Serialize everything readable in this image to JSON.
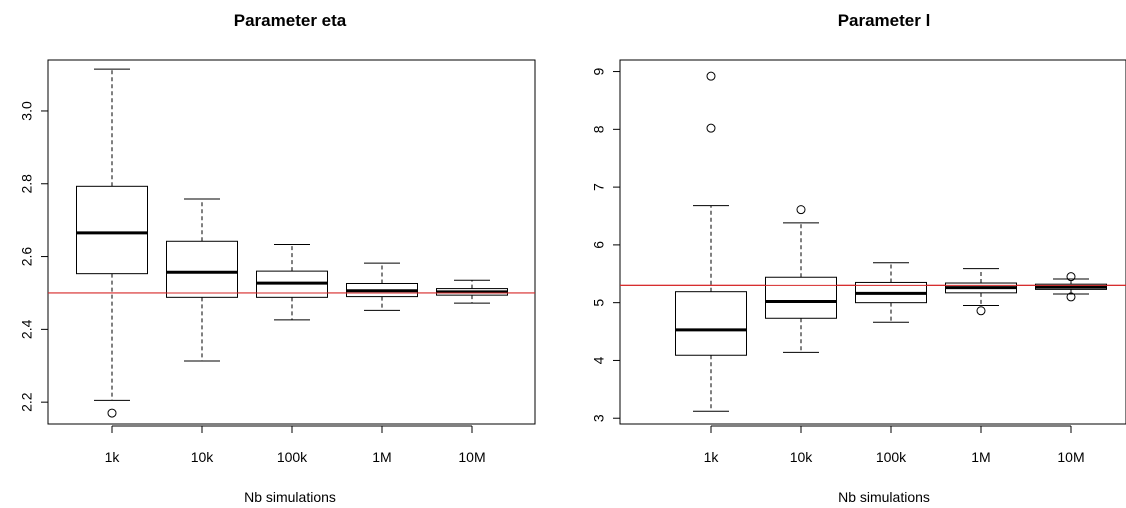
{
  "chart_data": [
    {
      "type": "boxplot",
      "title": "Parameter eta",
      "xlabel": "Nb simulations",
      "ylabel": "",
      "categories": [
        "1k",
        "10k",
        "100k",
        "1M",
        "10M"
      ],
      "yticks": [
        "2.2",
        "2.4",
        "2.6",
        "2.8",
        "3.0"
      ],
      "ylim": [
        2.14,
        3.14
      ],
      "reference_line": 2.5,
      "reference_color": "#d62728",
      "boxes": [
        {
          "whisker_low": 2.205,
          "q1": 2.553,
          "median": 2.665,
          "q3": 2.793,
          "whisker_high": 3.115,
          "outliers": [
            2.17
          ]
        },
        {
          "whisker_low": 2.313,
          "q1": 2.488,
          "median": 2.557,
          "q3": 2.642,
          "whisker_high": 2.758,
          "outliers": []
        },
        {
          "whisker_low": 2.426,
          "q1": 2.488,
          "median": 2.527,
          "q3": 2.56,
          "whisker_high": 2.633,
          "outliers": []
        },
        {
          "whisker_low": 2.452,
          "q1": 2.49,
          "median": 2.506,
          "q3": 2.526,
          "whisker_high": 2.582,
          "outliers": []
        },
        {
          "whisker_low": 2.472,
          "q1": 2.494,
          "median": 2.503,
          "q3": 2.512,
          "whisker_high": 2.535,
          "outliers": []
        }
      ]
    },
    {
      "type": "boxplot",
      "title": "Parameter l",
      "xlabel": "Nb simulations",
      "ylabel": "",
      "categories": [
        "1k",
        "10k",
        "100k",
        "1M",
        "10M"
      ],
      "yticks": [
        "3",
        "4",
        "5",
        "6",
        "7",
        "8",
        "9"
      ],
      "ylim": [
        2.9,
        9.2
      ],
      "reference_line": 5.3,
      "reference_color": "#d62728",
      "boxes": [
        {
          "whisker_low": 3.12,
          "q1": 4.09,
          "median": 4.53,
          "q3": 5.19,
          "whisker_high": 6.68,
          "outliers": [
            8.02,
            8.92
          ]
        },
        {
          "whisker_low": 4.14,
          "q1": 4.73,
          "median": 5.02,
          "q3": 5.44,
          "whisker_high": 6.38,
          "outliers": [
            6.61
          ]
        },
        {
          "whisker_low": 4.66,
          "q1": 5.0,
          "median": 5.16,
          "q3": 5.35,
          "whisker_high": 5.69,
          "outliers": []
        },
        {
          "whisker_low": 4.95,
          "q1": 5.17,
          "median": 5.26,
          "q3": 5.34,
          "whisker_high": 5.59,
          "outliers": [
            4.86
          ]
        },
        {
          "whisker_low": 5.15,
          "q1": 5.23,
          "median": 5.27,
          "q3": 5.32,
          "whisker_high": 5.41,
          "outliers": [
            5.1,
            5.45
          ]
        }
      ]
    }
  ]
}
